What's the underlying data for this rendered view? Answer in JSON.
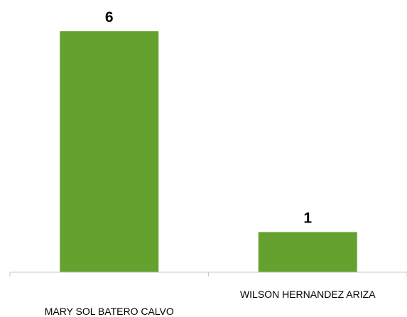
{
  "chart_data": {
    "type": "bar",
    "categories": [
      "MARY SOL BATERO CALVO",
      "WILSON HERNANDEZ ARIZA"
    ],
    "values": [
      6,
      1
    ],
    "data_labels": [
      "6",
      "1"
    ],
    "title": "",
    "xlabel": "",
    "ylabel": "",
    "ylim": [
      0,
      6
    ],
    "grid": false,
    "legend": "none",
    "bar_color": "#65A12F",
    "axis_color": "#C8C8C8"
  }
}
